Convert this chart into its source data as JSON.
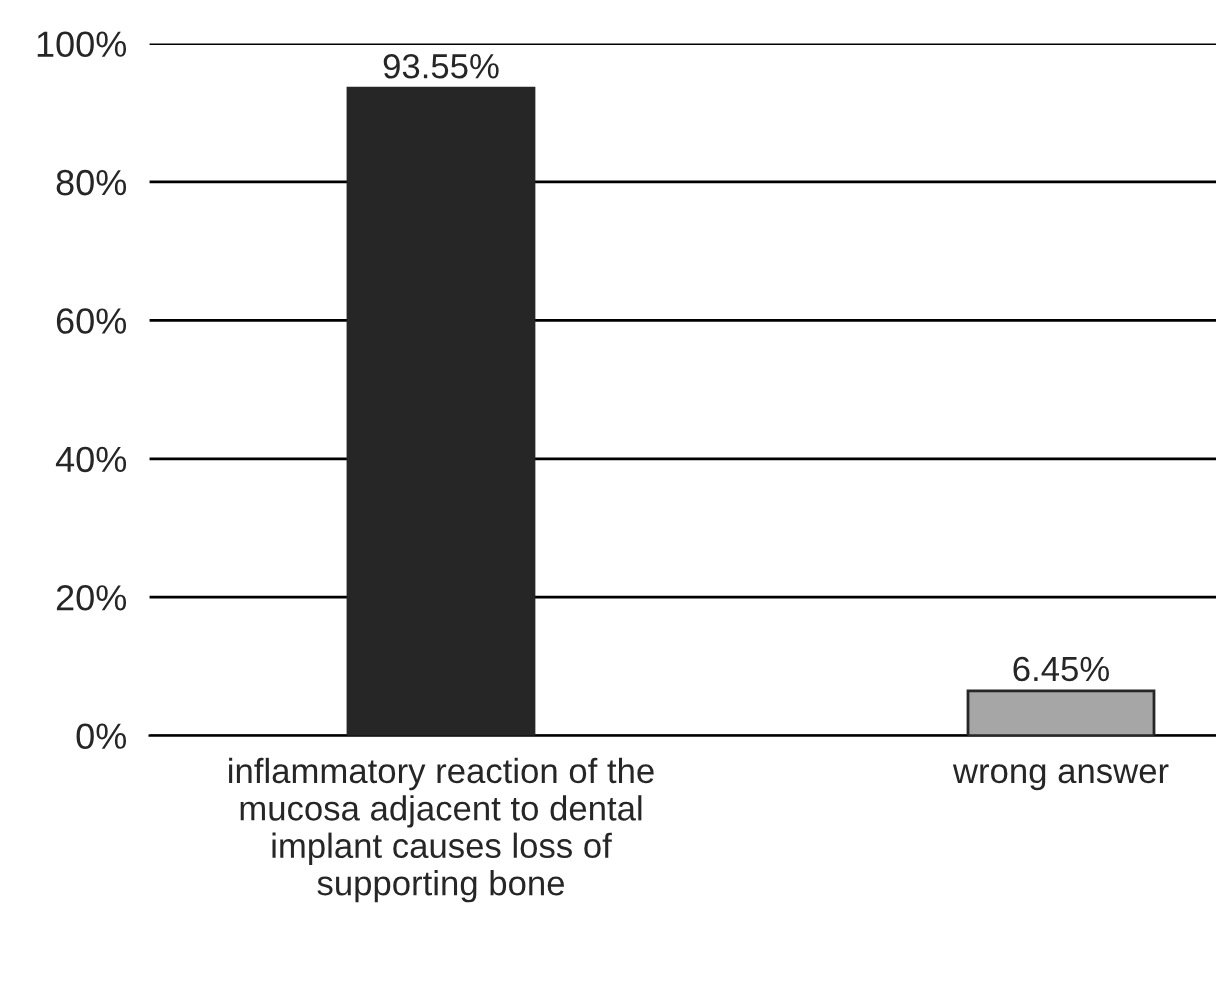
{
  "chart_data": {
    "type": "bar",
    "categories": [
      "inflammatory reaction of the\nmucosa adjacent to dental\nimplant causes loss of\nsupporting bone",
      "wrong answer"
    ],
    "values": [
      93.55,
      6.45
    ],
    "colors": [
      "#262626",
      "#a6a6a6"
    ],
    "value_labels": [
      "93.55%",
      "6.45%"
    ],
    "ylim": [
      0,
      100
    ],
    "yticks": [
      {
        "value": 0,
        "label": "0%"
      },
      {
        "value": 20,
        "label": "20%"
      },
      {
        "value": 40,
        "label": "40%"
      },
      {
        "value": 60,
        "label": "60%"
      },
      {
        "value": 80,
        "label": "80%"
      },
      {
        "value": 100,
        "label": "100%"
      }
    ],
    "grid": "y",
    "legend": false
  }
}
